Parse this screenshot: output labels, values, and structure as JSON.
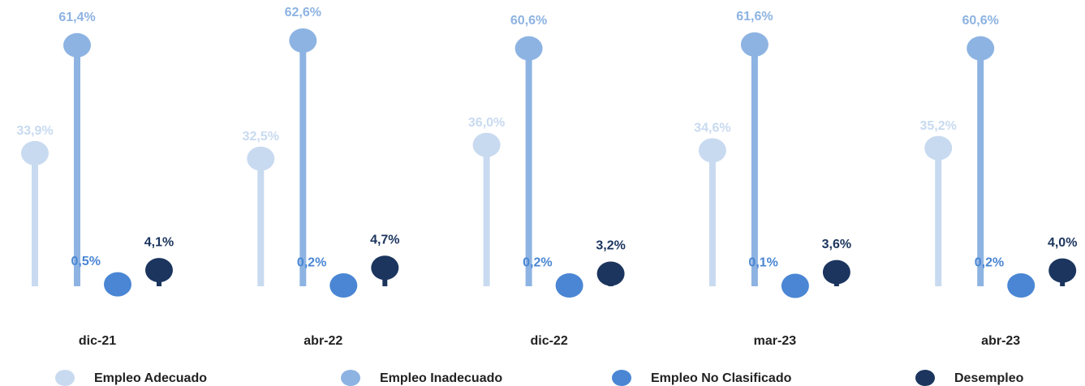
{
  "chart_data": {
    "type": "lollipop",
    "categories": [
      "dic-21",
      "abr-22",
      "dic-22",
      "mar-23",
      "abr-23"
    ],
    "series": [
      {
        "name": "Empleo Adecuado",
        "color": "#c8daf0",
        "values": [
          33.9,
          32.5,
          36.0,
          34.6,
          35.2
        ],
        "value_labels": [
          "33,9%",
          "32,5%",
          "36,0%",
          "34,6%",
          "35,2%"
        ]
      },
      {
        "name": "Empleo Inadecuado",
        "color": "#8db3e2",
        "values": [
          61.4,
          62.6,
          60.6,
          61.6,
          60.6
        ],
        "value_labels": [
          "61,4%",
          "62,6%",
          "60,6%",
          "61,6%",
          "60,6%"
        ]
      },
      {
        "name": "Empleo No Clasificado",
        "color": "#4a86d4",
        "values": [
          0.5,
          0.2,
          0.2,
          0.1,
          0.2
        ],
        "value_labels": [
          "0,5%",
          "0,2%",
          "0,2%",
          "0,1%",
          "0,2%"
        ]
      },
      {
        "name": "Desempleo",
        "color": "#1b355e",
        "values": [
          4.1,
          4.7,
          3.2,
          3.6,
          4.0
        ],
        "value_labels": [
          "4,1%",
          "4,7%",
          "3,2%",
          "3,6%",
          "4,0%"
        ]
      }
    ]
  }
}
